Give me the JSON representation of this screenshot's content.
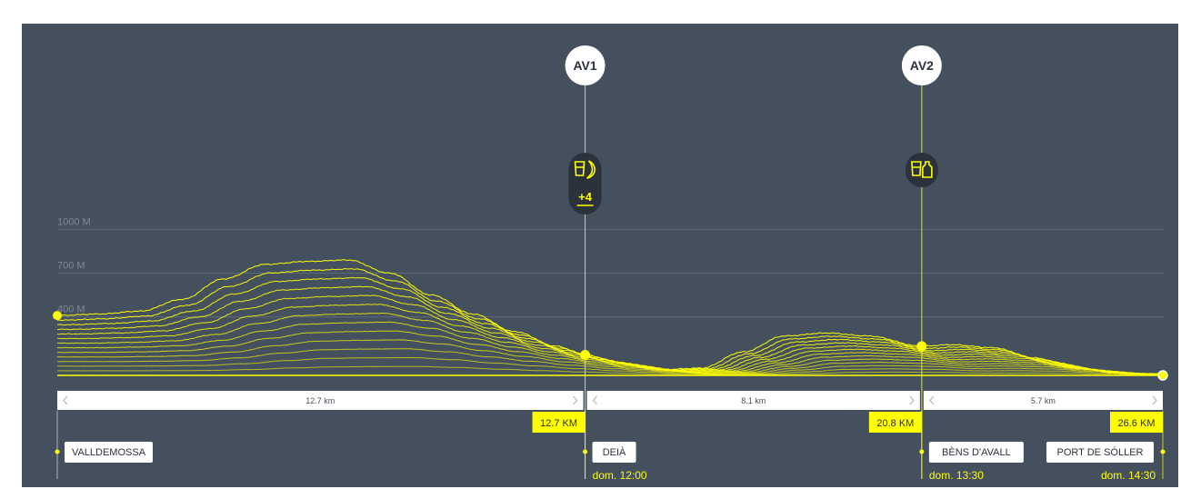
{
  "chart_data": {
    "type": "area",
    "title": "",
    "xlabel": "",
    "ylabel": "",
    "x_range_km": [
      0,
      26.6
    ],
    "y_ticks": [
      {
        "value": 400,
        "label": "400 M"
      },
      {
        "value": 700,
        "label": "700 M"
      },
      {
        "value": 1000,
        "label": "1000 M"
      }
    ],
    "ylim": [
      0,
      1100
    ],
    "grid": true,
    "elevation_profile": {
      "x_km": [
        0,
        1,
        2,
        3,
        4,
        5,
        6,
        7,
        8,
        9,
        10,
        11,
        12,
        12.7,
        13.5,
        14.5,
        15.5,
        16.5,
        17.5,
        18.5,
        19.5,
        20.8,
        21.5,
        22.5,
        23.5,
        24.5,
        25.5,
        26.6
      ],
      "elevation_m": [
        410,
        420,
        440,
        520,
        660,
        760,
        780,
        790,
        700,
        550,
        420,
        300,
        200,
        140,
        90,
        40,
        50,
        160,
        270,
        290,
        270,
        200,
        210,
        190,
        120,
        50,
        15,
        10
      ]
    },
    "accent_color": "#ffff00",
    "background_color": "#45505e",
    "checkpoints": [
      {
        "id": "AV1",
        "km": 12.7,
        "elevation_m": 140,
        "icons": [
          "cup-icon",
          "banana-icon"
        ],
        "badge": "+4"
      },
      {
        "id": "AV2",
        "km": 20.8,
        "elevation_m": 200,
        "icons": [
          "cup-icon",
          "bottle-icon"
        ],
        "badge": ""
      }
    ],
    "segments": [
      {
        "label": "12.7 km",
        "start_km": 0,
        "end_km": 12.7
      },
      {
        "label": "8.1 km",
        "start_km": 12.7,
        "end_km": 20.8
      },
      {
        "label": "5.7 km",
        "start_km": 20.8,
        "end_km": 26.6
      }
    ],
    "distance_markers": [
      {
        "km": 12.7,
        "label": "12.7 KM"
      },
      {
        "km": 20.8,
        "label": "20.8 KM"
      },
      {
        "km": 26.6,
        "label": "26.6 KM"
      }
    ],
    "locations": [
      {
        "km": 0,
        "name": "VALLDEMOSSA",
        "time": ""
      },
      {
        "km": 12.7,
        "name": "DEIÀ",
        "time": "dom. 12:00"
      },
      {
        "km": 20.8,
        "name": "BÈNS D'AVALL",
        "time": "dom. 13:30"
      },
      {
        "km": 26.6,
        "name": "PORT DE SÓLLER",
        "time": "dom. 14:30"
      }
    ]
  }
}
